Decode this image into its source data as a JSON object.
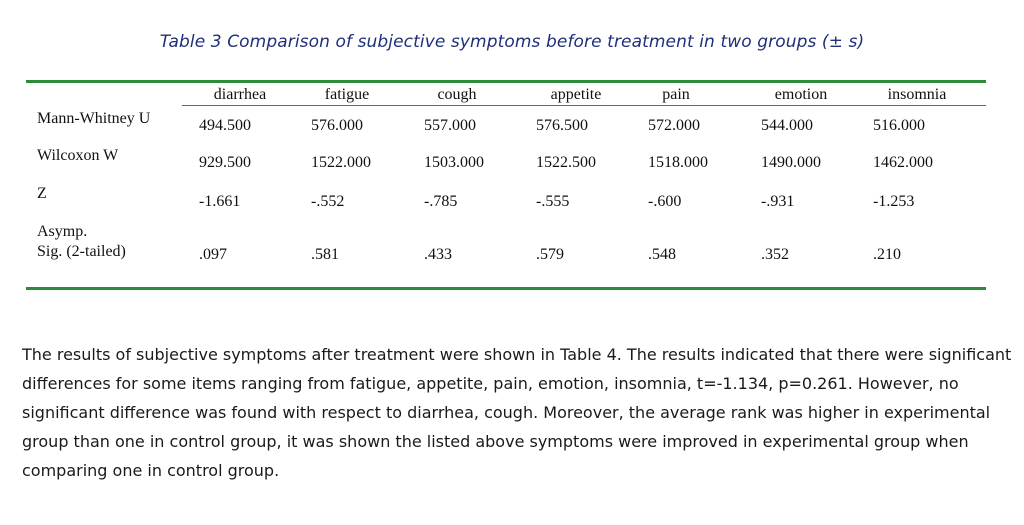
{
  "caption": "Table 3 Comparison of subjective symptoms before treatment in two groups (± s)",
  "table": {
    "columns": [
      "diarrhea",
      "fatigue",
      "cough",
      "appetite",
      "pain",
      "emotion",
      "insomnia"
    ],
    "rows": [
      {
        "label": "Mann-Whitney U",
        "values": [
          "494.500",
          "576.000",
          "557.000",
          "576.500",
          "572.000",
          "544.000",
          "516.000"
        ]
      },
      {
        "label": "Wilcoxon W",
        "values": [
          "929.500",
          "1522.000",
          "1503.000",
          "1522.500",
          "1518.000",
          "1490.000",
          "1462.000"
        ]
      },
      {
        "label": "Z",
        "values": [
          "-1.661",
          "-.552",
          "-.785",
          "-.555",
          "-.600",
          "-.931",
          "-1.253"
        ]
      },
      {
        "label": "Asymp.\nSig. (2-tailed)",
        "values": [
          ".097",
          ".581",
          ".433",
          ".579",
          ".548",
          ".352",
          ".210"
        ]
      }
    ]
  },
  "paragraph": "The results of subjective symptoms after treatment were shown in Table 4. The results indicated that there were significant differences for some items ranging from fatigue, appetite, pain, emotion, insomnia, t=-1.134, p=0.261. However, no significant difference was found with respect to diarrhea, cough. Moreover, the average rank was higher in experimental group than one in control group, it was shown the listed above symptoms were improved in experimental group when comparing one in control group."
}
